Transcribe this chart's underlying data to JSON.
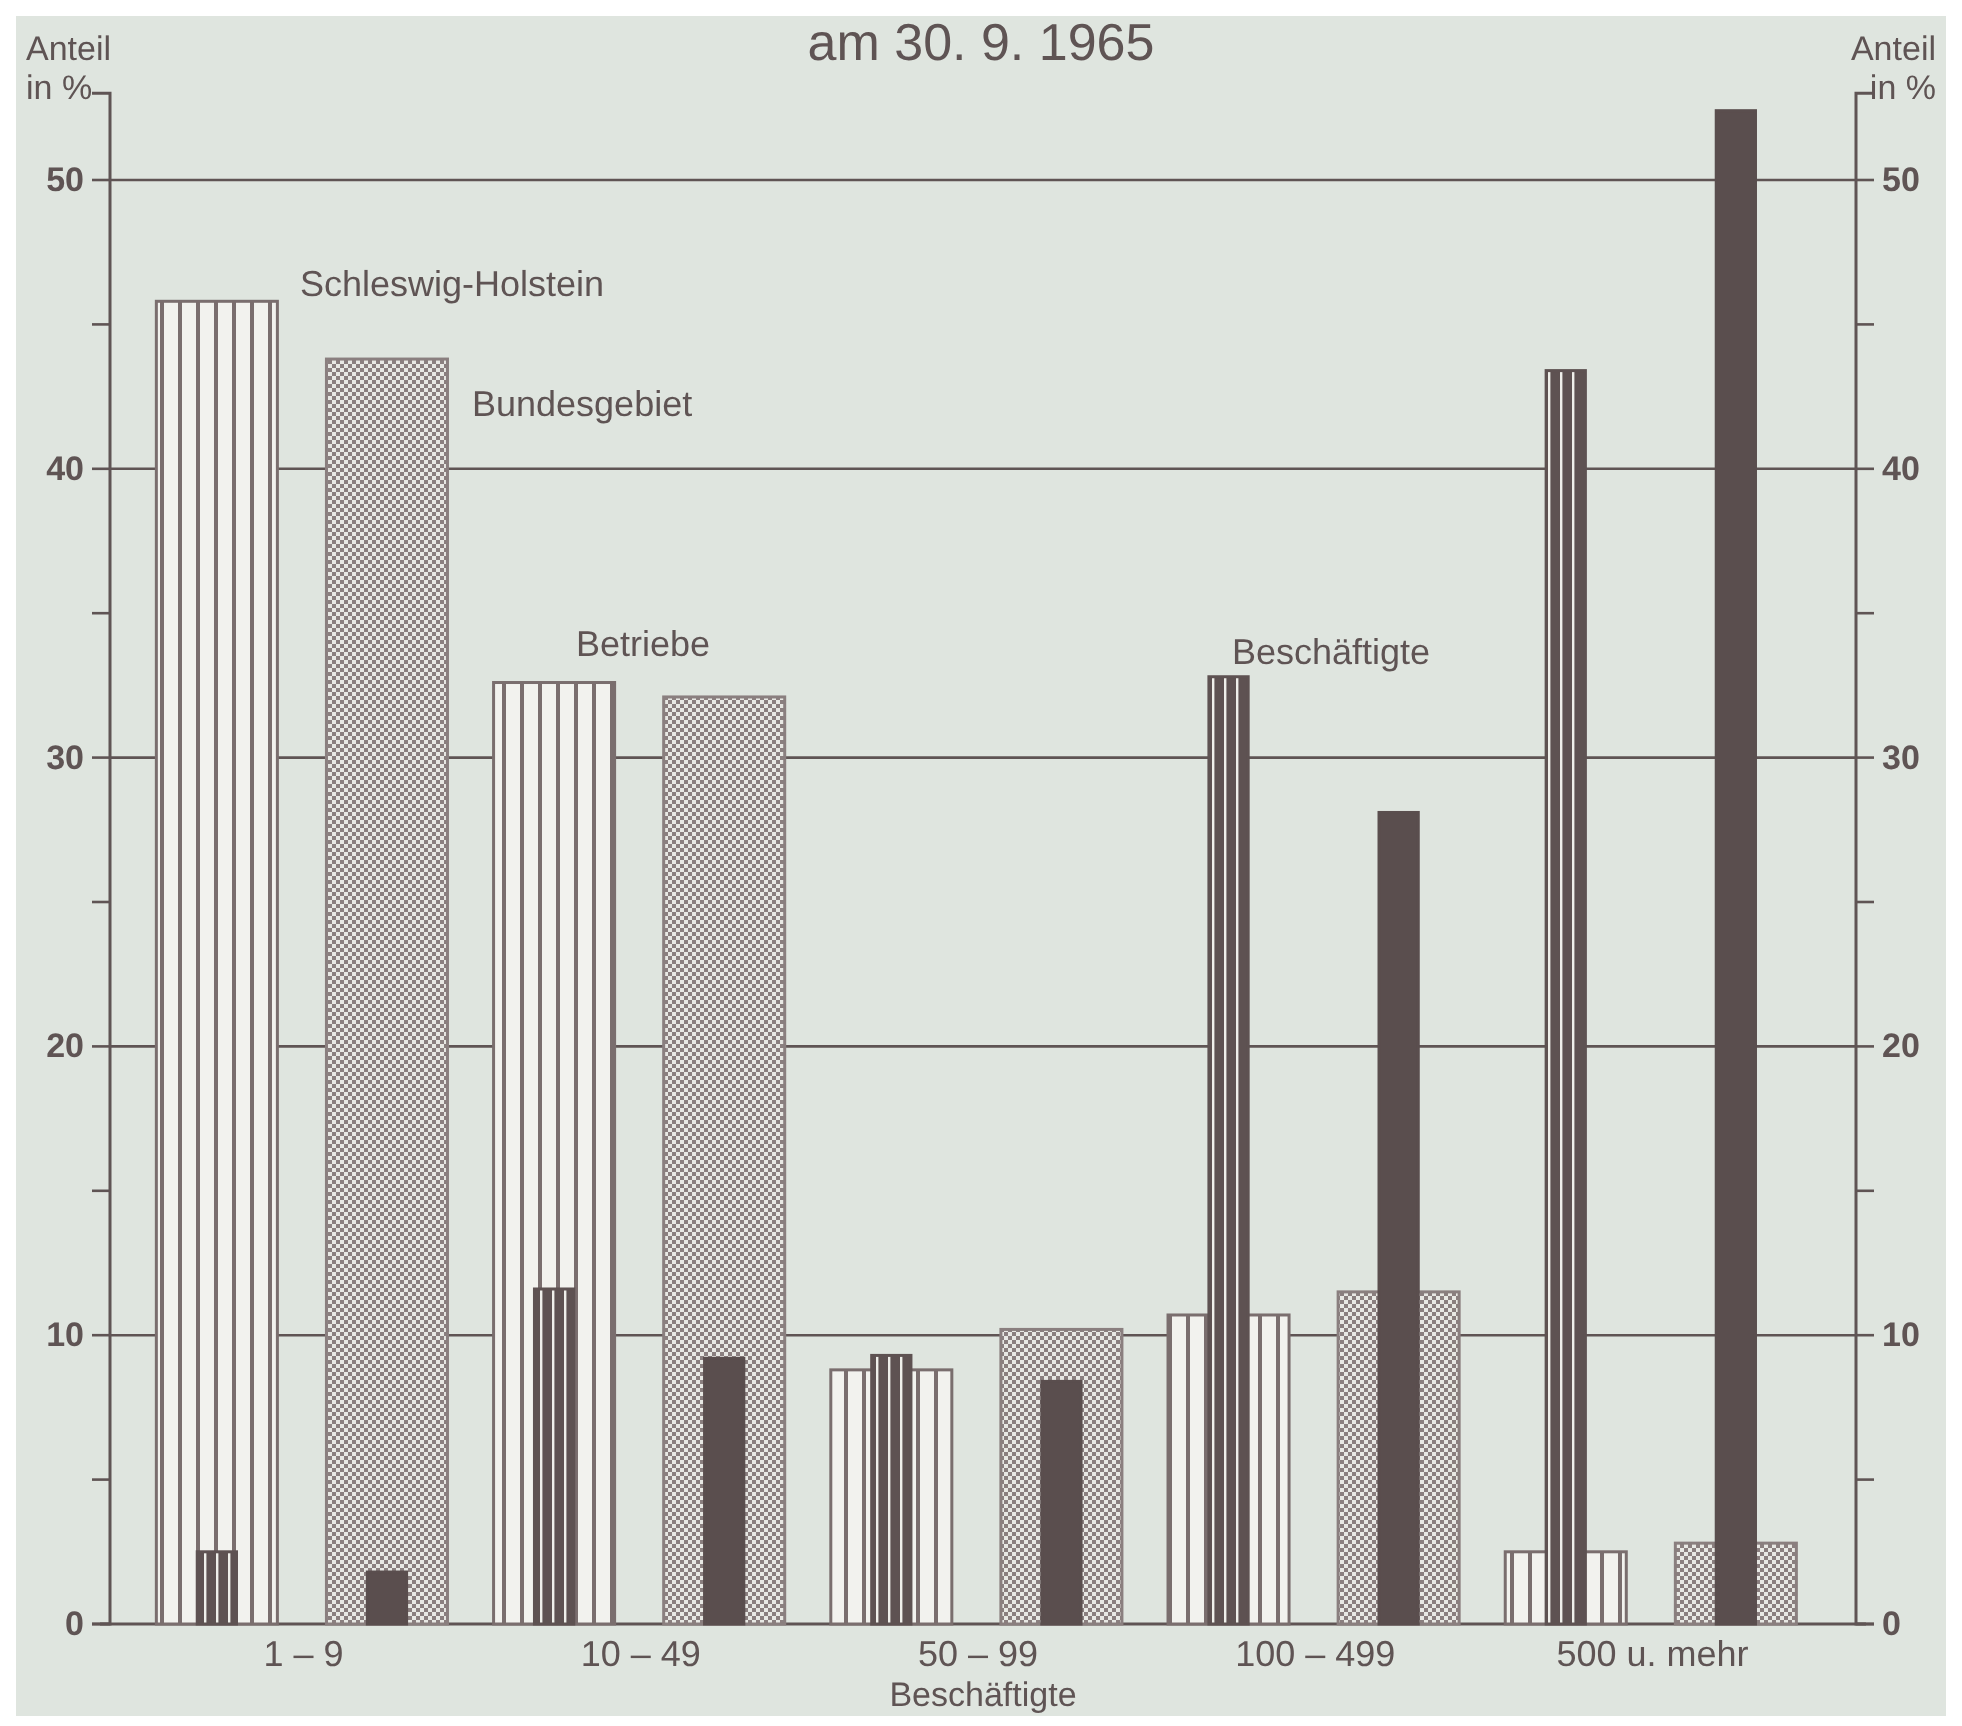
{
  "chart_data": {
    "type": "bar",
    "title": "am 30. 9. 1965",
    "xlabel": "Beschäftigte",
    "ylabel": "Anteil in %",
    "y2label": "Anteil in %",
    "categories": [
      "1 – 9",
      "10 – 49",
      "50 – 99",
      "100 – 499",
      "500 u. mehr"
    ],
    "series": [
      {
        "color": "#7a6e6e",
        "values": [
          45.8,
          32.6,
          8.8,
          10.7,
          2.5
        ]
      },
      {
        "color": "#8a7f7f",
        "values": [
          43.8,
          32.1,
          10.2,
          11.5,
          2.8
        ]
      },
      {
        "color": "#5e5252",
        "values": [
          2.5,
          11.6,
          9.3,
          32.8,
          43.4
        ]
      },
      {
        "color": "#5a4e4e",
        "values": [
          1.8,
          9.2,
          8.4,
          28.1,
          52.4
        ]
      }
    ],
    "ylim": [
      0,
      53
    ],
    "yticks": [
      0,
      {
        "value": 5,
        "label": null
      },
      10,
      {
        "value": 15,
        "label": null
      },
      20,
      {
        "value": 25,
        "label": null
      },
      30,
      {
        "value": 35,
        "label": null
      },
      40,
      {
        "value": 45,
        "label": null
      },
      50
    ],
    "y2lim": [
      0,
      53
    ],
    "y2ticks": [
      0,
      {
        "value": 5,
        "label": null
      },
      10,
      {
        "value": 15,
        "label": null
      },
      20,
      {
        "value": 25,
        "label": null
      },
      30,
      {
        "value": 35,
        "label": null
      },
      40,
      {
        "value": 45,
        "label": null
      },
      50
    ],
    "grid": "y",
    "annotations": [
      "Schleswig-Holstein",
      "Bundesgebiet",
      "Betriebe",
      "Beschäftigte"
    ]
  }
}
